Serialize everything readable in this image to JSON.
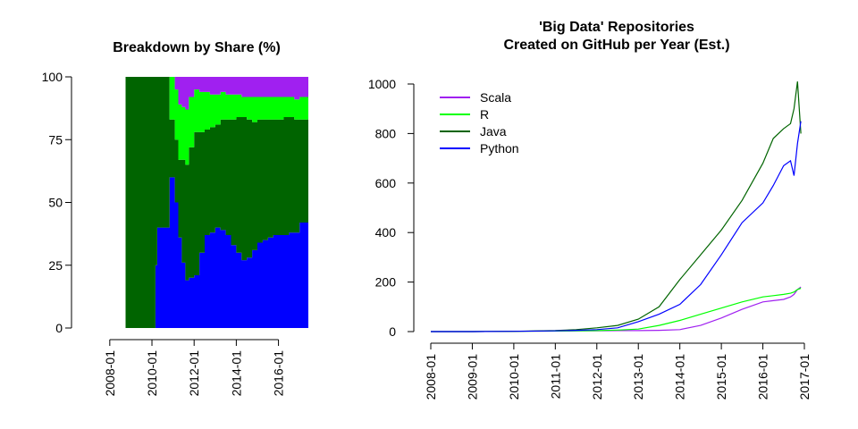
{
  "colors": {
    "scala": "#a020f0",
    "r": "#00ff00",
    "java": "#006400",
    "python": "#0000ff"
  },
  "chart_data": [
    {
      "type": "area",
      "title": "Breakdown by Share (%)",
      "xlabel": "",
      "ylabel": "",
      "ylim": [
        0,
        100
      ],
      "xlim": [
        "2007-08",
        "2017-06"
      ],
      "x_tick_labels": [
        "2008-01",
        "2010-01",
        "2012-01",
        "2014-01",
        "2016-01"
      ],
      "y_tick_labels": [
        "0",
        "25",
        "50",
        "75",
        "100"
      ],
      "stacked": true,
      "grid": false,
      "x": [
        "2008-10",
        "2009-06",
        "2010-01",
        "2010-03",
        "2010-04",
        "2010-06",
        "2010-08",
        "2010-11",
        "2011-02",
        "2011-04",
        "2011-06",
        "2011-08",
        "2011-10",
        "2012-01",
        "2012-04",
        "2012-07",
        "2012-10",
        "2013-01",
        "2013-04",
        "2013-07",
        "2013-10",
        "2014-01",
        "2014-04",
        "2014-07",
        "2014-10",
        "2015-01",
        "2015-04",
        "2015-07",
        "2015-10",
        "2016-01",
        "2016-04",
        "2016-07",
        "2016-10",
        "2017-01"
      ],
      "series": [
        {
          "name": "Python",
          "values": [
            0,
            0,
            0,
            25,
            40,
            40,
            40,
            60,
            50,
            36,
            26,
            19,
            20,
            21,
            30,
            37,
            38,
            40,
            39,
            37,
            33,
            30,
            27,
            28,
            31,
            34,
            35,
            36,
            37,
            37,
            37,
            38,
            38,
            42
          ]
        },
        {
          "name": "Java",
          "values": [
            100,
            100,
            100,
            75,
            60,
            60,
            60,
            23,
            25,
            31,
            41,
            46,
            52,
            57,
            48,
            42,
            42,
            41,
            44,
            46,
            50,
            54,
            57,
            55,
            51,
            49,
            48,
            47,
            46,
            46,
            47,
            46,
            45,
            41
          ]
        },
        {
          "name": "R",
          "values": [
            0,
            0,
            0,
            0,
            0,
            0,
            0,
            17,
            20,
            22,
            21,
            22,
            20,
            17,
            16,
            15,
            13,
            12,
            11,
            10,
            10,
            9,
            8,
            9,
            10,
            9,
            9,
            9,
            9,
            9,
            8,
            8,
            8,
            9
          ]
        },
        {
          "name": "Scala",
          "values": [
            0,
            0,
            0,
            0,
            0,
            0,
            0,
            0,
            5,
            11,
            12,
            13,
            8,
            5,
            6,
            6,
            7,
            7,
            6,
            7,
            7,
            7,
            8,
            8,
            8,
            8,
            8,
            8,
            8,
            8,
            8,
            8,
            9,
            8
          ]
        }
      ]
    },
    {
      "type": "line",
      "title": "'Big Data' Repositories\nCreated on GitHub per Year (Est.)",
      "xlabel": "",
      "ylabel": "",
      "ylim": [
        0,
        1000
      ],
      "xlim": [
        "2008-01",
        "2017-01"
      ],
      "x_tick_labels": [
        "2008-01",
        "2009-01",
        "2010-01",
        "2011-01",
        "2012-01",
        "2013-01",
        "2014-01",
        "2015-01",
        "2016-01",
        "2017-01"
      ],
      "y_tick_labels": [
        "0",
        "200",
        "400",
        "600",
        "800",
        "1000"
      ],
      "legend": "top-left",
      "grid": false,
      "x": [
        "2008-01",
        "2009-01",
        "2010-01",
        "2011-01",
        "2011-07",
        "2012-01",
        "2012-07",
        "2013-01",
        "2013-07",
        "2014-01",
        "2014-07",
        "2015-01",
        "2015-07",
        "2016-01",
        "2016-04",
        "2016-07",
        "2016-09",
        "2016-10",
        "2016-11",
        "2016-12"
      ],
      "series": [
        {
          "name": "Scala",
          "values": [
            0,
            0,
            1,
            2,
            3,
            3,
            4,
            4,
            5,
            8,
            25,
            55,
            90,
            120,
            125,
            130,
            140,
            150,
            170,
            180
          ]
        },
        {
          "name": "R",
          "values": [
            0,
            0,
            1,
            2,
            3,
            4,
            6,
            10,
            25,
            45,
            70,
            95,
            120,
            140,
            145,
            150,
            155,
            160,
            170,
            175
          ]
        },
        {
          "name": "Java",
          "values": [
            0,
            0,
            1,
            4,
            8,
            15,
            25,
            50,
            100,
            210,
            310,
            410,
            530,
            680,
            780,
            820,
            840,
            900,
            1010,
            800
          ]
        },
        {
          "name": "Python",
          "values": [
            0,
            0,
            1,
            3,
            5,
            8,
            15,
            40,
            70,
            110,
            190,
            310,
            440,
            520,
            590,
            670,
            690,
            630,
            760,
            850
          ]
        }
      ]
    }
  ]
}
